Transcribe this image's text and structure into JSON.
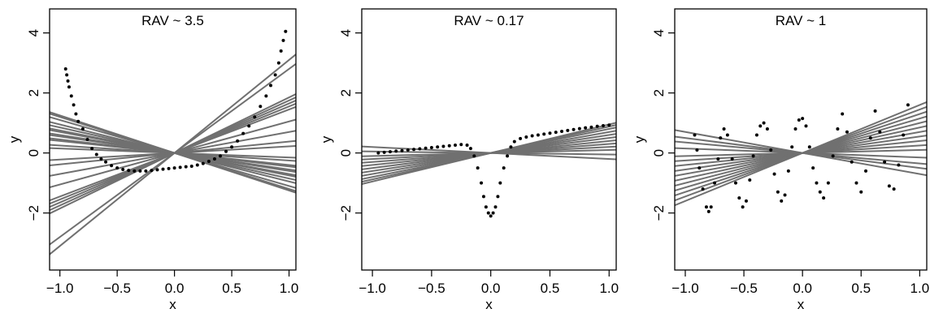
{
  "chart_data": [
    {
      "type": "scatter",
      "title": "RAV ~ 3.5",
      "xlabel": "x",
      "ylabel": "y",
      "xlim": [
        -1.09,
        1.06
      ],
      "ylim": [
        -3.9,
        4.8
      ],
      "xticks": [
        -1.0,
        -0.5,
        0.0,
        0.5,
        1.0
      ],
      "xtick_labels": [
        "−1.0",
        "−0.5",
        "0.0",
        "0.5",
        "1.0"
      ],
      "yticks": [
        -2,
        0,
        2,
        4
      ],
      "ytick_labels": [
        "−2",
        "0",
        "2",
        "4"
      ],
      "grid": false,
      "colors": {
        "points": "#000000",
        "lines": "#707070"
      },
      "line_slopes": [
        3.1,
        2.8,
        1.85,
        1.75,
        1.65,
        1.55,
        1.45,
        1.05,
        0.7,
        0.38,
        0.22,
        -0.4,
        -0.55,
        -0.7,
        -0.95,
        -1.2,
        -0.15,
        -0.25,
        -0.45,
        -0.6,
        -0.75,
        -0.85,
        -1.1,
        -1.25
      ],
      "points": [
        [
          -0.95,
          2.8
        ],
        [
          -0.94,
          2.6
        ],
        [
          -0.93,
          2.4
        ],
        [
          -0.92,
          2.2
        ],
        [
          -0.9,
          1.9
        ],
        [
          -0.88,
          1.6
        ],
        [
          -0.86,
          1.3
        ],
        [
          -0.84,
          1.05
        ],
        [
          -0.8,
          0.8
        ],
        [
          -0.76,
          0.45
        ],
        [
          -0.72,
          0.15
        ],
        [
          -0.68,
          -0.05
        ],
        [
          -0.64,
          -0.2
        ],
        [
          -0.6,
          -0.3
        ],
        [
          -0.55,
          -0.42
        ],
        [
          -0.5,
          -0.5
        ],
        [
          -0.45,
          -0.55
        ],
        [
          -0.4,
          -0.58
        ],
        [
          -0.35,
          -0.6
        ],
        [
          -0.3,
          -0.6
        ],
        [
          -0.25,
          -0.6
        ],
        [
          -0.2,
          -0.58
        ],
        [
          -0.15,
          -0.56
        ],
        [
          -0.1,
          -0.54
        ],
        [
          -0.05,
          -0.52
        ],
        [
          0.0,
          -0.5
        ],
        [
          0.05,
          -0.48
        ],
        [
          0.1,
          -0.46
        ],
        [
          0.15,
          -0.44
        ],
        [
          0.2,
          -0.4
        ],
        [
          0.25,
          -0.35
        ],
        [
          0.3,
          -0.28
        ],
        [
          0.35,
          -0.2
        ],
        [
          0.4,
          -0.1
        ],
        [
          0.45,
          0.05
        ],
        [
          0.5,
          0.2
        ],
        [
          0.55,
          0.4
        ],
        [
          0.6,
          0.65
        ],
        [
          0.65,
          0.9
        ],
        [
          0.7,
          1.2
        ],
        [
          0.75,
          1.55
        ],
        [
          0.8,
          1.9
        ],
        [
          0.84,
          2.25
        ],
        [
          0.88,
          2.6
        ],
        [
          0.91,
          3.0
        ],
        [
          0.93,
          3.4
        ],
        [
          0.95,
          3.75
        ],
        [
          0.97,
          4.05
        ]
      ]
    },
    {
      "type": "scatter",
      "title": "RAV ~ 0.17",
      "xlabel": "x",
      "ylabel": "y",
      "xlim": [
        -1.09,
        1.06
      ],
      "ylim": [
        -3.9,
        4.8
      ],
      "xticks": [
        -1.0,
        -0.5,
        0.0,
        0.5,
        1.0
      ],
      "xtick_labels": [
        "−1.0",
        "−0.5",
        "0.0",
        "0.5",
        "1.0"
      ],
      "yticks": [
        -2,
        0,
        2,
        4
      ],
      "ytick_labels": [
        "−2",
        "0",
        "2",
        "4"
      ],
      "grid": false,
      "colors": {
        "points": "#000000",
        "lines": "#707070"
      },
      "line_slopes": [
        0.95,
        0.88,
        0.8,
        0.7,
        0.6,
        0.5,
        0.4,
        0.3,
        0.2,
        0.1,
        -0.05,
        -0.2
      ],
      "points": [
        [
          -0.95,
          0.0
        ],
        [
          -0.9,
          0.02
        ],
        [
          -0.85,
          0.04
        ],
        [
          -0.8,
          0.06
        ],
        [
          -0.75,
          0.08
        ],
        [
          -0.7,
          0.1
        ],
        [
          -0.65,
          0.12
        ],
        [
          -0.6,
          0.14
        ],
        [
          -0.55,
          0.16
        ],
        [
          -0.5,
          0.18
        ],
        [
          -0.45,
          0.2
        ],
        [
          -0.4,
          0.22
        ],
        [
          -0.35,
          0.24
        ],
        [
          -0.3,
          0.26
        ],
        [
          -0.25,
          0.28
        ],
        [
          -0.2,
          0.26
        ],
        [
          -0.17,
          0.15
        ],
        [
          -0.14,
          -0.1
        ],
        [
          -0.11,
          -0.5
        ],
        [
          -0.08,
          -1.0
        ],
        [
          -0.06,
          -1.45
        ],
        [
          -0.04,
          -1.8
        ],
        [
          -0.02,
          -2.0
        ],
        [
          0.0,
          -2.1
        ],
        [
          0.02,
          -2.0
        ],
        [
          0.04,
          -1.8
        ],
        [
          0.06,
          -1.45
        ],
        [
          0.08,
          -1.0
        ],
        [
          0.11,
          -0.5
        ],
        [
          0.14,
          -0.1
        ],
        [
          0.17,
          0.2
        ],
        [
          0.2,
          0.38
        ],
        [
          0.25,
          0.48
        ],
        [
          0.3,
          0.53
        ],
        [
          0.35,
          0.57
        ],
        [
          0.4,
          0.6
        ],
        [
          0.45,
          0.63
        ],
        [
          0.5,
          0.66
        ],
        [
          0.55,
          0.69
        ],
        [
          0.6,
          0.72
        ],
        [
          0.65,
          0.75
        ],
        [
          0.7,
          0.78
        ],
        [
          0.75,
          0.81
        ],
        [
          0.8,
          0.84
        ],
        [
          0.85,
          0.86
        ],
        [
          0.9,
          0.89
        ],
        [
          0.95,
          0.91
        ],
        [
          1.0,
          0.93
        ]
      ]
    },
    {
      "type": "scatter",
      "title": "RAV ~ 1",
      "xlabel": "x",
      "ylabel": "y",
      "xlim": [
        -1.09,
        1.06
      ],
      "ylim": [
        -3.9,
        4.8
      ],
      "xticks": [
        -1.0,
        -0.5,
        0.0,
        0.5,
        1.0
      ],
      "xtick_labels": [
        "−1.0",
        "−0.5",
        "0.0",
        "0.5",
        "1.0"
      ],
      "yticks": [
        -2,
        0,
        2,
        4
      ],
      "ytick_labels": [
        "−2",
        "0",
        "2",
        "4"
      ],
      "grid": false,
      "colors": {
        "points": "#000000",
        "lines": "#707070"
      },
      "line_slopes": [
        1.6,
        1.45,
        1.3,
        1.15,
        1.0,
        0.85,
        0.7,
        0.55,
        0.4,
        0.25,
        0.1,
        -0.15,
        -0.35,
        -0.5,
        -0.7
      ],
      "points": [
        [
          -0.92,
          0.6
        ],
        [
          -0.9,
          0.1
        ],
        [
          -0.88,
          -0.5
        ],
        [
          -0.85,
          -1.2
        ],
        [
          -0.82,
          -1.8
        ],
        [
          -0.8,
          -1.95
        ],
        [
          -0.78,
          -1.8
        ],
        [
          -0.75,
          -1.0
        ],
        [
          -0.72,
          -0.2
        ],
        [
          -0.7,
          0.5
        ],
        [
          -0.67,
          0.8
        ],
        [
          -0.64,
          0.6
        ],
        [
          -0.6,
          -0.2
        ],
        [
          -0.57,
          -1.0
        ],
        [
          -0.54,
          -1.5
        ],
        [
          -0.51,
          -1.8
        ],
        [
          -0.48,
          -1.6
        ],
        [
          -0.45,
          -0.9
        ],
        [
          -0.42,
          -0.1
        ],
        [
          -0.39,
          0.6
        ],
        [
          -0.36,
          0.9
        ],
        [
          -0.33,
          1.0
        ],
        [
          -0.3,
          0.8
        ],
        [
          -0.27,
          0.1
        ],
        [
          -0.24,
          -0.7
        ],
        [
          -0.21,
          -1.3
        ],
        [
          -0.18,
          -1.6
        ],
        [
          -0.15,
          -1.4
        ],
        [
          -0.12,
          -0.6
        ],
        [
          -0.09,
          0.2
        ],
        [
          -0.06,
          0.8
        ],
        [
          -0.03,
          1.1
        ],
        [
          0.0,
          1.15
        ],
        [
          0.03,
          0.9
        ],
        [
          0.06,
          0.2
        ],
        [
          0.09,
          -0.5
        ],
        [
          0.12,
          -1.0
        ],
        [
          0.15,
          -1.3
        ],
        [
          0.18,
          -1.5
        ],
        [
          0.22,
          -1.0
        ],
        [
          0.26,
          -0.1
        ],
        [
          0.3,
          0.8
        ],
        [
          0.34,
          1.3
        ],
        [
          0.38,
          0.7
        ],
        [
          0.42,
          -0.3
        ],
        [
          0.46,
          -1.0
        ],
        [
          0.5,
          -1.3
        ],
        [
          0.54,
          -0.6
        ],
        [
          0.58,
          0.5
        ],
        [
          0.62,
          1.4
        ],
        [
          0.66,
          0.7
        ],
        [
          0.7,
          -0.3
        ],
        [
          0.74,
          -1.1
        ],
        [
          0.78,
          -1.2
        ],
        [
          0.82,
          -0.4
        ],
        [
          0.86,
          0.6
        ],
        [
          0.9,
          1.6
        ]
      ]
    }
  ]
}
